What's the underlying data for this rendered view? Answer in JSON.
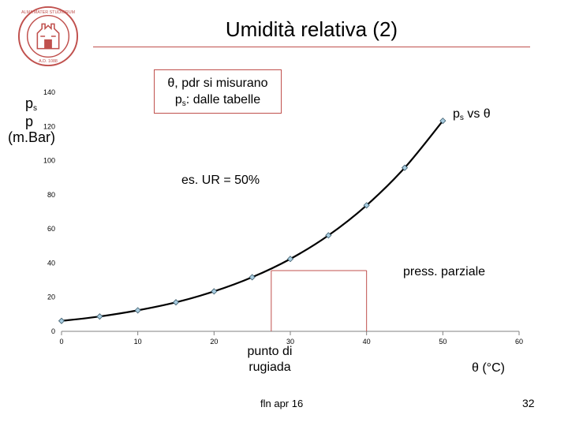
{
  "slide": {
    "title": "Umidità relativa (2)",
    "footer": "fln apr 16",
    "page_number": "32"
  },
  "logo": {
    "text_top": "ALMA MATER STUDIORUM",
    "text_bottom": "A.D. 1088",
    "color": "#c0504d"
  },
  "labels": {
    "y_axis": {
      "line1_main": "p",
      "line1_sub": "s",
      "line2": "p",
      "line3": "(m.Bar)"
    },
    "x_axis": "θ (°C)",
    "callout": {
      "line1": "θ, pdr si misurano",
      "line2_main": "p",
      "line2_sub": "s",
      "line2_rest": ": dalle tabelle"
    },
    "series_label": {
      "main": "p",
      "sub": "s",
      "rest": " vs θ"
    },
    "example": "es. UR = 50%",
    "partial_pressure": "press. parziale",
    "dew_point": {
      "line1": "punto di",
      "line2": "rugiada"
    }
  },
  "colors": {
    "accent": "#c0504d",
    "curve": "#000000",
    "marker_fill": "#a8cce0",
    "marker_stroke": "#3a5a6a",
    "axis": "#808080"
  },
  "chart_data": {
    "type": "line",
    "title": "",
    "xlabel": "θ (°C)",
    "ylabel": "ps p (m.Bar)",
    "xlim": [
      0,
      60
    ],
    "ylim": [
      0,
      140
    ],
    "xticks": [
      0,
      10,
      20,
      30,
      40,
      50,
      60
    ],
    "yticks": [
      0,
      20,
      40,
      60,
      80,
      100,
      120,
      140
    ],
    "series": [
      {
        "name": "ps vs θ",
        "x": [
          0,
          5,
          10,
          15,
          20,
          25,
          30,
          35,
          40,
          45,
          50
        ],
        "y": [
          6.1,
          8.7,
          12.3,
          17.0,
          23.4,
          31.7,
          42.4,
          56.2,
          73.8,
          95.8,
          123.3
        ]
      }
    ],
    "guides": [
      {
        "name": "partial-pressure-line",
        "from": [
          27.5,
          35.6
        ],
        "to": [
          40,
          35.6
        ]
      },
      {
        "name": "dew-point-line",
        "from": [
          27.5,
          0
        ],
        "to": [
          27.5,
          35.6
        ]
      },
      {
        "name": "saturation-drop-line",
        "from": [
          40,
          0
        ],
        "to": [
          40,
          35.6
        ]
      }
    ]
  }
}
